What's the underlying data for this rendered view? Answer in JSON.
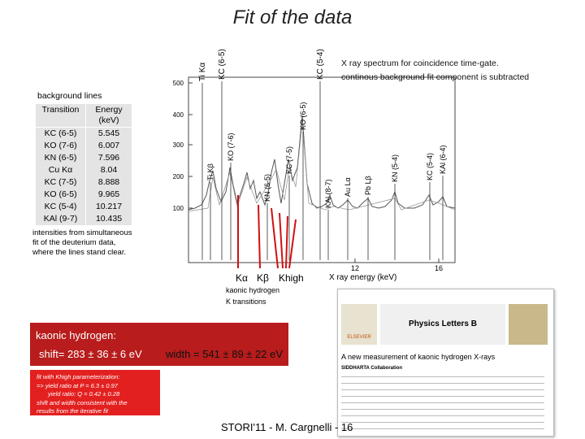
{
  "title": "Fit of the data",
  "top_labels": [
    "Ti Kα",
    "KC (6-5)",
    "KC (5-4)"
  ],
  "note": [
    "X ray spectrum for coincidence time-gate.",
    "continous background fit component is subtracted"
  ],
  "background_heading": "background lines",
  "table": {
    "header": [
      "Transition",
      "Energy (keV)"
    ],
    "rows": [
      [
        "KC (6-5)",
        5.545
      ],
      [
        "KO (7-6)",
        6.007
      ],
      [
        "KN (6-5)",
        7.596
      ],
      [
        "Cu Kα",
        8.04
      ],
      [
        "KC (7-5)",
        8.888
      ],
      [
        "KO (6-5)",
        9.965
      ],
      [
        "KC (5-4)",
        10.217
      ],
      [
        "KAl (9-7)",
        10.435
      ]
    ]
  },
  "plot": {
    "peak_labels": [
      "Ti Kβ",
      "KO (7-6)",
      "KN (6-5)",
      "KC (7-5)",
      "KO (6-5)",
      "KAl (8-7)",
      "Au Lα",
      "Pb Lβ",
      "KN (5-4)",
      "KC (5-4)",
      "KAl (6-4)"
    ],
    "y_tick_labels": [
      "500",
      "400",
      "300",
      "200",
      "100"
    ],
    "x_tick_labels": [
      "12",
      "16"
    ],
    "x_axis_label": "X ray energy  (keV)",
    "arrow_labels": [
      "Kα",
      "Kβ",
      "Khigh"
    ],
    "caption": [
      "kaonic hydrogen",
      "K transitions"
    ]
  },
  "intensity_note": [
    "intensities from simultaneous",
    "fit of the deuterium data,",
    "where the lines stand clear."
  ],
  "result": {
    "heading": "kaonic   hydrogen:",
    "shift": "shift=  283 ± 36 ± 6 eV",
    "width": "width = 541 ± 89 ± 22 eV"
  },
  "fit_note": [
    "fit with Khigh parameterization:",
    "=>  yield ratio at   P = 6.3 ± 0.97",
    "yield ratio:   Q = 0.42 ± 0.28",
    "shift and width consistent with the",
    "results from the iterative fit"
  ],
  "journal": {
    "name": "Physics Letters B",
    "publisher": "ELSEVIER",
    "article": "A new measurement of kaonic hydrogen X-rays",
    "collaboration": "SIDDHARTA Collaboration"
  },
  "footer": "STORI'11 - M. Cargnelli - 16"
}
